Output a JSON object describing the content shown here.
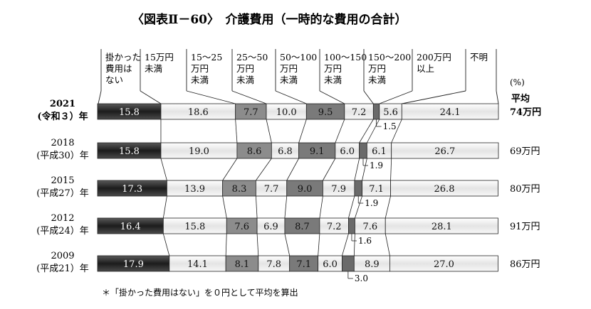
{
  "chart_data": {
    "type": "bar",
    "stacked": true,
    "orientation": "horizontal",
    "title": "〈図表Ⅱ－60〉　介護費用（一時的な費用の合計）",
    "unit_label": "(%)",
    "avg_header": "平均",
    "categories": [
      {
        "year": "2021",
        "era": "(令和３）年",
        "avg": "74万円",
        "highlight": true
      },
      {
        "year": "2018",
        "era": "(平成30）年",
        "avg": "69万円",
        "highlight": false
      },
      {
        "year": "2015",
        "era": "(平成27）年",
        "avg": "80万円",
        "highlight": false
      },
      {
        "year": "2012",
        "era": "(平成24）年",
        "avg": "91万円",
        "highlight": false
      },
      {
        "year": "2009",
        "era": "(平成21）年",
        "avg": "86万円",
        "highlight": false
      }
    ],
    "series": [
      {
        "name": "掛かった費用はない",
        "lines": [
          "掛かった",
          "費用は",
          "ない"
        ],
        "values": [
          15.8,
          15.8,
          17.3,
          16.4,
          17.9
        ],
        "color": "#3a3a3a"
      },
      {
        "name": "15万円未満",
        "lines": [
          "15万円",
          "未満"
        ],
        "values": [
          18.6,
          19.0,
          13.9,
          15.8,
          14.1
        ],
        "color": "#f2f2f2"
      },
      {
        "name": "15～25万円未満",
        "lines": [
          "15～25",
          "万円",
          "未満"
        ],
        "values": [
          7.7,
          8.6,
          8.3,
          7.6,
          8.1
        ],
        "color": "#8c8c8c"
      },
      {
        "name": "25～50万円未満",
        "lines": [
          "25～50",
          "万円",
          "未満"
        ],
        "values": [
          10.0,
          6.8,
          7.7,
          6.9,
          7.8
        ],
        "color": "#e6e6e6"
      },
      {
        "name": "50～100万円未満",
        "lines": [
          "50～100",
          "万円",
          "未満"
        ],
        "values": [
          9.5,
          9.1,
          9.0,
          8.7,
          7.1
        ],
        "color": "#7a7a7a"
      },
      {
        "name": "100～150万円未満",
        "lines": [
          "100～150",
          "万円",
          "未満"
        ],
        "values": [
          7.2,
          6.0,
          7.9,
          7.2,
          6.0
        ],
        "color": "#dcdcdc"
      },
      {
        "name": "150～200万円未満",
        "lines": [
          "150～200",
          "万円",
          "未満"
        ],
        "values": [
          1.5,
          1.9,
          1.9,
          1.6,
          3.0
        ],
        "color": "#6a6a6a"
      },
      {
        "name": "200万円以上",
        "lines": [
          "200万円",
          "以上"
        ],
        "values": [
          5.6,
          6.1,
          7.1,
          7.6,
          8.9
        ],
        "color": "#d0d0d0"
      },
      {
        "name": "不明",
        "lines": [
          "不明"
        ],
        "values": [
          24.1,
          26.7,
          26.8,
          28.1,
          27.0
        ],
        "color": "#f7f7f7"
      }
    ],
    "xlim": [
      0,
      100
    ],
    "footnote": "＊「掛かった費用はない」を０円として平均を算出"
  }
}
